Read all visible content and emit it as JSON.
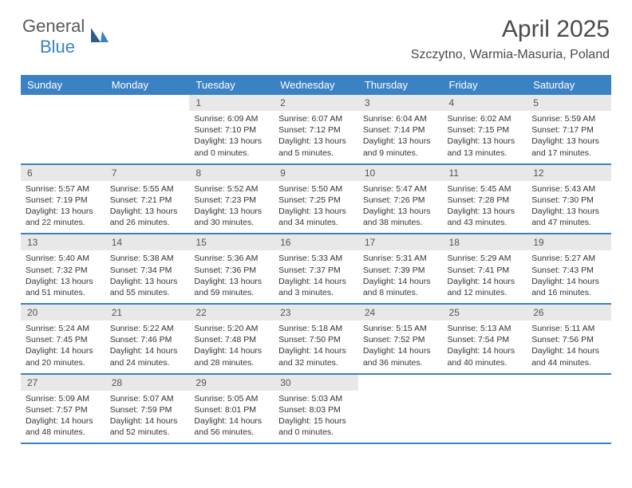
{
  "brand": {
    "part1": "General",
    "part2": "Blue"
  },
  "title": "April 2025",
  "location": "Szczytno, Warmia-Masuria, Poland",
  "colors": {
    "accent": "#3b82c4",
    "header_bg": "#3b82c4",
    "header_text": "#ffffff",
    "daynum_bg": "#e8e8e8",
    "daynum_text": "#555555",
    "body_text": "#333333",
    "logo_gray": "#5a5a5a",
    "row_border": "#3b82c4"
  },
  "weekdays": [
    "Sunday",
    "Monday",
    "Tuesday",
    "Wednesday",
    "Thursday",
    "Friday",
    "Saturday"
  ],
  "weeks": [
    [
      null,
      null,
      {
        "d": "1",
        "sr": "6:09 AM",
        "ss": "7:10 PM",
        "dl": "13 hours and 0 minutes."
      },
      {
        "d": "2",
        "sr": "6:07 AM",
        "ss": "7:12 PM",
        "dl": "13 hours and 5 minutes."
      },
      {
        "d": "3",
        "sr": "6:04 AM",
        "ss": "7:14 PM",
        "dl": "13 hours and 9 minutes."
      },
      {
        "d": "4",
        "sr": "6:02 AM",
        "ss": "7:15 PM",
        "dl": "13 hours and 13 minutes."
      },
      {
        "d": "5",
        "sr": "5:59 AM",
        "ss": "7:17 PM",
        "dl": "13 hours and 17 minutes."
      }
    ],
    [
      {
        "d": "6",
        "sr": "5:57 AM",
        "ss": "7:19 PM",
        "dl": "13 hours and 22 minutes."
      },
      {
        "d": "7",
        "sr": "5:55 AM",
        "ss": "7:21 PM",
        "dl": "13 hours and 26 minutes."
      },
      {
        "d": "8",
        "sr": "5:52 AM",
        "ss": "7:23 PM",
        "dl": "13 hours and 30 minutes."
      },
      {
        "d": "9",
        "sr": "5:50 AM",
        "ss": "7:25 PM",
        "dl": "13 hours and 34 minutes."
      },
      {
        "d": "10",
        "sr": "5:47 AM",
        "ss": "7:26 PM",
        "dl": "13 hours and 38 minutes."
      },
      {
        "d": "11",
        "sr": "5:45 AM",
        "ss": "7:28 PM",
        "dl": "13 hours and 43 minutes."
      },
      {
        "d": "12",
        "sr": "5:43 AM",
        "ss": "7:30 PM",
        "dl": "13 hours and 47 minutes."
      }
    ],
    [
      {
        "d": "13",
        "sr": "5:40 AM",
        "ss": "7:32 PM",
        "dl": "13 hours and 51 minutes."
      },
      {
        "d": "14",
        "sr": "5:38 AM",
        "ss": "7:34 PM",
        "dl": "13 hours and 55 minutes."
      },
      {
        "d": "15",
        "sr": "5:36 AM",
        "ss": "7:36 PM",
        "dl": "13 hours and 59 minutes."
      },
      {
        "d": "16",
        "sr": "5:33 AM",
        "ss": "7:37 PM",
        "dl": "14 hours and 3 minutes."
      },
      {
        "d": "17",
        "sr": "5:31 AM",
        "ss": "7:39 PM",
        "dl": "14 hours and 8 minutes."
      },
      {
        "d": "18",
        "sr": "5:29 AM",
        "ss": "7:41 PM",
        "dl": "14 hours and 12 minutes."
      },
      {
        "d": "19",
        "sr": "5:27 AM",
        "ss": "7:43 PM",
        "dl": "14 hours and 16 minutes."
      }
    ],
    [
      {
        "d": "20",
        "sr": "5:24 AM",
        "ss": "7:45 PM",
        "dl": "14 hours and 20 minutes."
      },
      {
        "d": "21",
        "sr": "5:22 AM",
        "ss": "7:46 PM",
        "dl": "14 hours and 24 minutes."
      },
      {
        "d": "22",
        "sr": "5:20 AM",
        "ss": "7:48 PM",
        "dl": "14 hours and 28 minutes."
      },
      {
        "d": "23",
        "sr": "5:18 AM",
        "ss": "7:50 PM",
        "dl": "14 hours and 32 minutes."
      },
      {
        "d": "24",
        "sr": "5:15 AM",
        "ss": "7:52 PM",
        "dl": "14 hours and 36 minutes."
      },
      {
        "d": "25",
        "sr": "5:13 AM",
        "ss": "7:54 PM",
        "dl": "14 hours and 40 minutes."
      },
      {
        "d": "26",
        "sr": "5:11 AM",
        "ss": "7:56 PM",
        "dl": "14 hours and 44 minutes."
      }
    ],
    [
      {
        "d": "27",
        "sr": "5:09 AM",
        "ss": "7:57 PM",
        "dl": "14 hours and 48 minutes."
      },
      {
        "d": "28",
        "sr": "5:07 AM",
        "ss": "7:59 PM",
        "dl": "14 hours and 52 minutes."
      },
      {
        "d": "29",
        "sr": "5:05 AM",
        "ss": "8:01 PM",
        "dl": "14 hours and 56 minutes."
      },
      {
        "d": "30",
        "sr": "5:03 AM",
        "ss": "8:03 PM",
        "dl": "15 hours and 0 minutes."
      },
      null,
      null,
      null
    ]
  ],
  "labels": {
    "sunrise": "Sunrise:",
    "sunset": "Sunset:",
    "daylight": "Daylight:"
  }
}
